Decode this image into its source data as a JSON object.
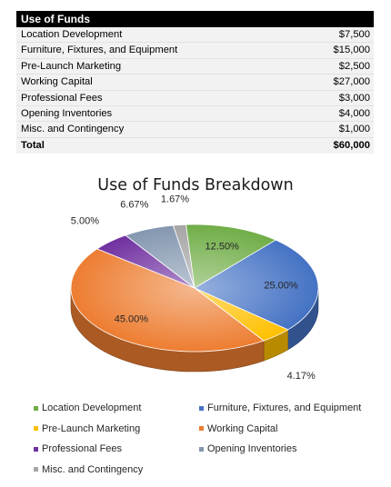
{
  "table": {
    "header": "Use of Funds",
    "rows": [
      {
        "label": "Location Development",
        "amount": "$7,500"
      },
      {
        "label": "Furniture, Fixtures, and Equipment",
        "amount": "$15,000"
      },
      {
        "label": "Pre-Launch Marketing",
        "amount": "$2,500"
      },
      {
        "label": "Working Capital",
        "amount": "$27,000"
      },
      {
        "label": "Professional Fees",
        "amount": "$3,000"
      },
      {
        "label": "Opening Inventories",
        "amount": "$4,000"
      },
      {
        "label": "Misc. and Contingency",
        "amount": "$1,000"
      }
    ],
    "total": {
      "label": "Total",
      "amount": "$60,000"
    }
  },
  "chart_data": {
    "type": "pie",
    "title": "Use of Funds Breakdown",
    "three_d": true,
    "categories": [
      "Location Development",
      "Furniture, Fixtures, and Equipment",
      "Pre-Launch Marketing",
      "Working Capital",
      "Professional Fees",
      "Opening Inventories",
      "Misc. and Contingency"
    ],
    "values": [
      7500,
      15000,
      2500,
      27000,
      3000,
      4000,
      1000
    ],
    "data_labels": [
      "12.50%",
      "25.00%",
      "4.17%",
      "45.00%",
      "5.00%",
      "6.67%",
      "1.67%"
    ],
    "colors": [
      "#70ad47",
      "#4472c4",
      "#ffc000",
      "#ed7d31",
      "#7030a0",
      "#8497b0",
      "#a5a5a5"
    ],
    "legend_placement": "bottom"
  }
}
